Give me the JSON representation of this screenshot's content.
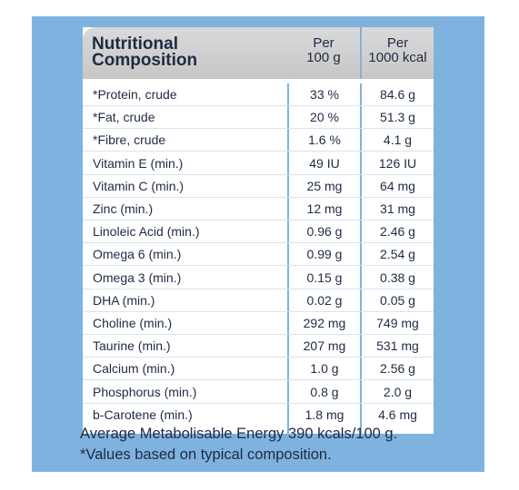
{
  "table": {
    "header": {
      "title_line1": "Nutritional",
      "title_line2": "Composition",
      "col1_line1": "Per",
      "col1_line2": "100 g",
      "col2_line1": "Per",
      "col2_line2": "1000 kcal"
    },
    "rows": [
      {
        "name": "*Protein, crude",
        "per100g": "33 %",
        "per1000kcal": "84.6 g"
      },
      {
        "name": "*Fat, crude",
        "per100g": "20 %",
        "per1000kcal": "51.3 g"
      },
      {
        "name": "*Fibre, crude",
        "per100g": "1.6 %",
        "per1000kcal": "4.1 g"
      },
      {
        "name": "Vitamin E (min.)",
        "per100g": "49 IU",
        "per1000kcal": "126 IU"
      },
      {
        "name": "Vitamin C (min.)",
        "per100g": "25 mg",
        "per1000kcal": "64 mg"
      },
      {
        "name": "Zinc (min.)",
        "per100g": "12 mg",
        "per1000kcal": "31 mg"
      },
      {
        "name": "Linoleic Acid (min.)",
        "per100g": "0.96 g",
        "per1000kcal": "2.46 g"
      },
      {
        "name": "Omega 6 (min.)",
        "per100g": "0.99 g",
        "per1000kcal": "2.54 g"
      },
      {
        "name": "Omega 3 (min.)",
        "per100g": "0.15 g",
        "per1000kcal": "0.38 g"
      },
      {
        "name": "DHA (min.)",
        "per100g": "0.02 g",
        "per1000kcal": "0.05 g"
      },
      {
        "name": "Choline (min.)",
        "per100g": "292 mg",
        "per1000kcal": "749 mg"
      },
      {
        "name": "Taurine (min.)",
        "per100g": "207 mg",
        "per1000kcal": "531 mg"
      },
      {
        "name": "Calcium (min.)",
        "per100g": "1.0 g",
        "per1000kcal": "2.56 g"
      },
      {
        "name": "Phosphorus (min.)",
        "per100g": "0.8 g",
        "per1000kcal": "2.0 g"
      },
      {
        "name": "b-Carotene (min.)",
        "per100g": "1.8 mg",
        "per1000kcal": "4.6 mg"
      }
    ]
  },
  "footnotes": {
    "energy": "Average Metabolisable Energy 390 kcals/100 g.",
    "note": "*Values based on typical composition."
  },
  "colors": {
    "panel_background": "#7fb2df",
    "header_gray": "#d0d0d0",
    "text_navy": "#1f2a44"
  }
}
